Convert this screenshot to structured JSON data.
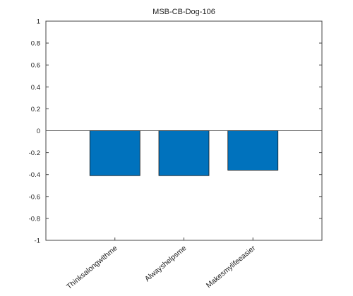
{
  "chart_data": {
    "type": "bar",
    "title": "MSB-CB-Dog-106",
    "xlabel": "",
    "ylabel": "",
    "categories": [
      "Thinksalongwithme",
      "Alwayshelpsme",
      "Makesmylifeeasier"
    ],
    "values": [
      -0.41,
      -0.41,
      -0.36
    ],
    "ylim": [
      -1,
      1
    ],
    "yticks": [
      1,
      0.8,
      0.6,
      0.4,
      0.2,
      0,
      -0.2,
      -0.4,
      -0.6,
      -0.8,
      -1
    ],
    "ytick_labels": [
      "1",
      "0.8",
      "0.6",
      "0.4",
      "0.2",
      "0",
      "-0.2",
      "-0.4",
      "-0.6",
      "-0.8",
      "-1"
    ],
    "bar_color": "#0072BD",
    "grid": false,
    "zero_line": true
  }
}
